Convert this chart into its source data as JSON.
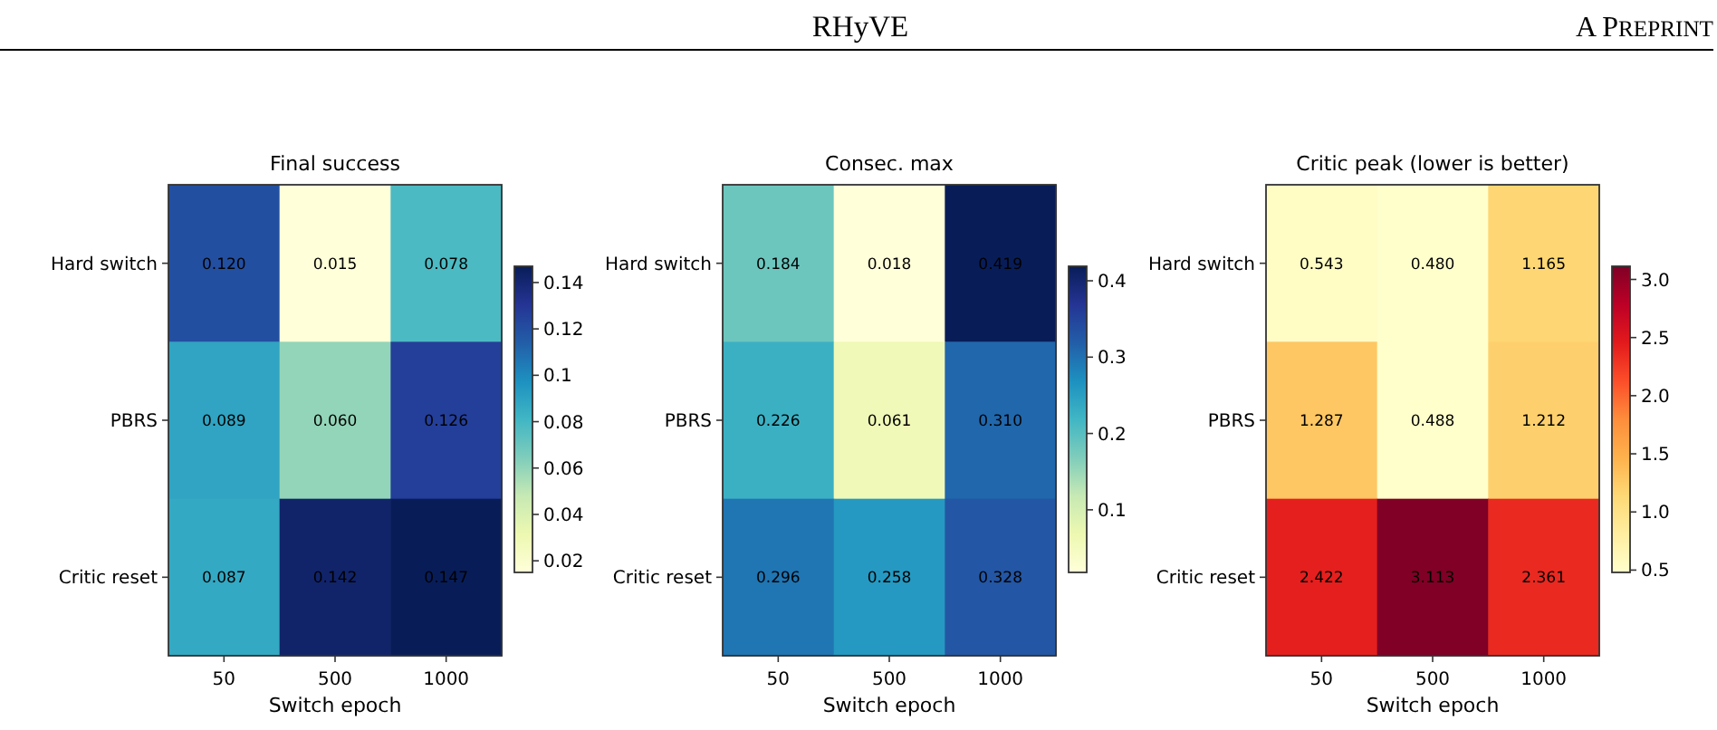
{
  "chart_data": [
    {
      "type": "heatmap",
      "title": "Final success",
      "xlabel": "Switch epoch",
      "categories": [
        "50",
        "500",
        "1000"
      ],
      "y_categories": [
        "Hard switch",
        "PBRS",
        "Critic reset"
      ],
      "cells": [
        [
          0.12,
          0.015,
          0.078
        ],
        [
          0.089,
          0.06,
          0.126
        ],
        [
          0.087,
          0.142,
          0.147
        ]
      ],
      "cell_labels": [
        [
          "0.120",
          "0.015",
          "0.078"
        ],
        [
          "0.089",
          "0.060",
          "0.126"
        ],
        [
          "0.087",
          "0.142",
          "0.147"
        ]
      ],
      "clim": [
        0.015,
        0.147
      ],
      "cticks": [
        0.02,
        0.04,
        0.06,
        0.08,
        0.1,
        0.12,
        0.14
      ],
      "colors": [
        "#ffffd9",
        "#edf8b1",
        "#c7e9b4",
        "#7fcdbb",
        "#41b6c4",
        "#1d91c0",
        "#225ea8",
        "#253494",
        "#081d58"
      ],
      "annotations": [
        "RHyVE",
        "A PREPRINT"
      ]
    },
    {
      "type": "heatmap",
      "title": "Consec. max",
      "xlabel": "Switch epoch",
      "categories": [
        "50",
        "500",
        "1000"
      ],
      "y_categories": [
        "Hard switch",
        "PBRS",
        "Critic reset"
      ],
      "cells": [
        [
          0.184,
          0.018,
          0.419
        ],
        [
          0.226,
          0.061,
          0.31
        ],
        [
          0.296,
          0.258,
          0.328
        ]
      ],
      "cell_labels": [
        [
          "0.184",
          "0.018",
          "0.419"
        ],
        [
          "0.226",
          "0.061",
          "0.310"
        ],
        [
          "0.296",
          "0.258",
          "0.328"
        ]
      ],
      "clim": [
        0.018,
        0.419
      ],
      "cticks": [
        0.1,
        0.2,
        0.3,
        0.4
      ],
      "colors": [
        "#ffffd9",
        "#edf8b1",
        "#c7e9b4",
        "#7fcdbb",
        "#41b6c4",
        "#1d91c0",
        "#225ea8",
        "#253494",
        "#081d58"
      ]
    },
    {
      "type": "heatmap",
      "title": "Critic peak (lower is better)",
      "xlabel": "Switch epoch",
      "categories": [
        "50",
        "500",
        "1000"
      ],
      "y_categories": [
        "Hard switch",
        "PBRS",
        "Critic reset"
      ],
      "cells": [
        [
          0.543,
          0.48,
          1.165
        ],
        [
          1.287,
          0.488,
          1.212
        ],
        [
          2.422,
          3.113,
          2.361
        ]
      ],
      "cell_labels": [
        [
          "0.543",
          "0.480",
          "1.165"
        ],
        [
          "1.287",
          "0.488",
          "1.212"
        ],
        [
          "2.422",
          "3.113",
          "2.361"
        ]
      ],
      "clim": [
        0.48,
        3.113
      ],
      "cticks": [
        0.5,
        {
          "value": 1,
          "label": "1.0"
        },
        1.5,
        {
          "value": 2,
          "label": "2.0"
        },
        2.5,
        {
          "value": 3,
          "label": "3.0"
        }
      ],
      "colors": [
        "#ffffcc",
        "#ffeda0",
        "#fed976",
        "#feb24c",
        "#fd8d3c",
        "#fc4e2a",
        "#e31a1c",
        "#bd0026",
        "#800026"
      ]
    }
  ]
}
